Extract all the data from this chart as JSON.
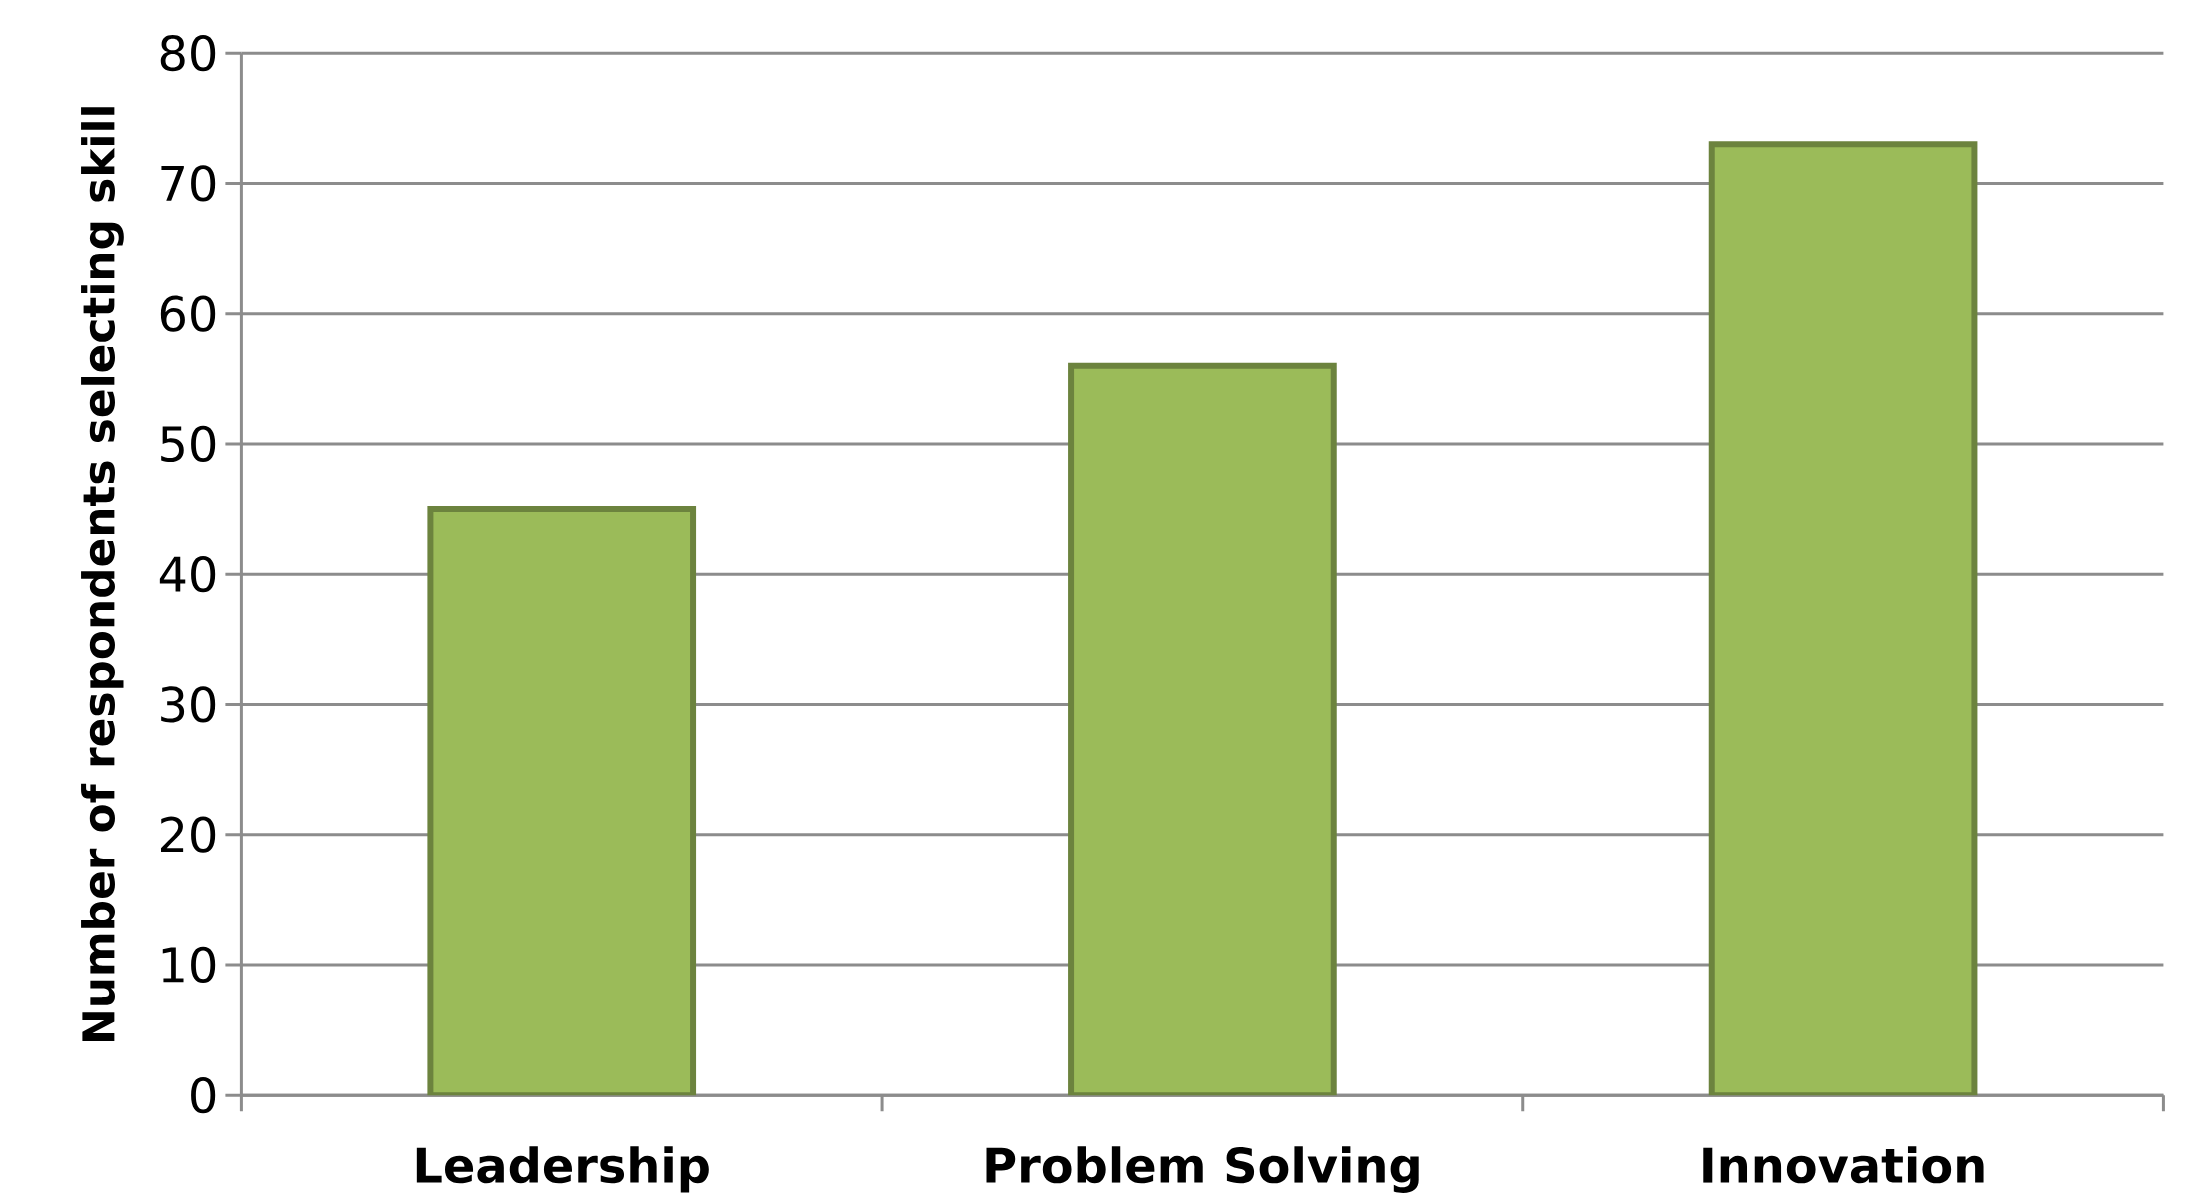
{
  "chart_data": {
    "type": "bar",
    "ylabel": "Number of respondents selecting skill",
    "categories": [
      "Leadership",
      "Problem Solving",
      "Innovation"
    ],
    "values": [
      45,
      56,
      73
    ],
    "color": "#9bbb59",
    "ylim": [
      0,
      80
    ],
    "yticks": [
      0,
      10,
      20,
      30,
      40,
      50,
      60,
      70,
      80
    ],
    "grid": "y"
  }
}
